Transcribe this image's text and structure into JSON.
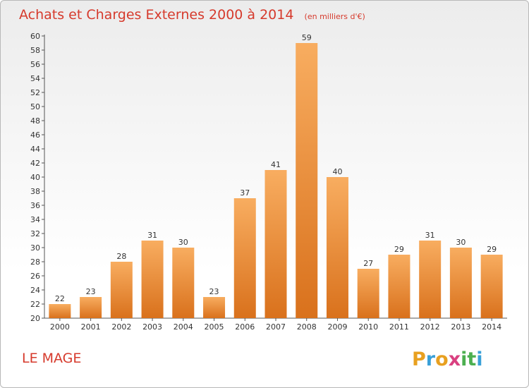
{
  "chart_data": {
    "type": "bar",
    "title": "Achats et Charges Externes 2000 à 2014",
    "subtitle": "(en milliers d'€)",
    "categories": [
      "2000",
      "2001",
      "2002",
      "2003",
      "2004",
      "2005",
      "2006",
      "2007",
      "2008",
      "2009",
      "2010",
      "2011",
      "2012",
      "2013",
      "2014"
    ],
    "values": [
      22,
      23,
      28,
      31,
      30,
      23,
      37,
      41,
      59,
      40,
      27,
      29,
      31,
      30,
      29
    ],
    "ylim": [
      20,
      60
    ],
    "ytick_step": 2,
    "grid": false,
    "bar_color": "#f0902a"
  },
  "location": "LE MAGE",
  "logo": {
    "letters": [
      "P",
      "r",
      "o",
      "x",
      "i",
      "t",
      "i"
    ],
    "colors": [
      "#e8a020",
      "#3aa0d8",
      "#e8a020",
      "#d94080",
      "#4caf50",
      "#4caf50",
      "#3aa0d8"
    ]
  },
  "colors": {
    "title": "#d63a2c",
    "bar_light": "#f8ad60",
    "bar_dark": "#d9711c"
  }
}
